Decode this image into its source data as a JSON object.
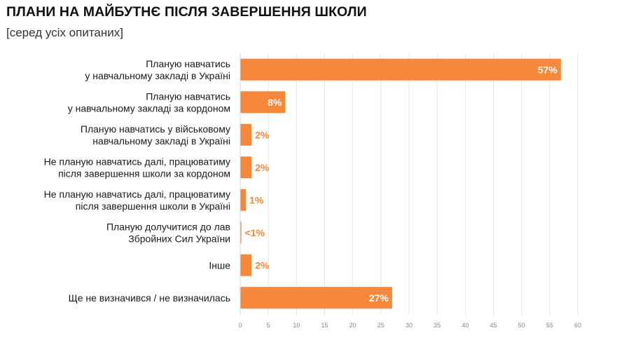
{
  "title": "ПЛАНИ НА МАЙБУТНЄ ПІСЛЯ ЗАВЕРШЕННЯ ШКОЛИ",
  "subtitle": "[серед усіх опитаних]",
  "chart_data": {
    "type": "bar",
    "orientation": "horizontal",
    "bar_color": "#f5883b",
    "grid": true,
    "xlim": [
      0,
      60
    ],
    "xticks": [
      0,
      5,
      10,
      15,
      20,
      25,
      30,
      35,
      40,
      45,
      50,
      55,
      60
    ],
    "categories": [
      [
        "Планую навчатись",
        "у навчальному закладі в Україні"
      ],
      [
        "Планую навчатись",
        "у навчальному закладі за кордоном"
      ],
      [
        "Планую навчатись у військовому",
        "навчальному закладі в Україні"
      ],
      [
        "Не планую навчатись далі, працюватиму",
        "після завершення школи за кордоном"
      ],
      [
        "Не планую навчатись далі, працюватиму",
        "після завершення школи в Україні"
      ],
      [
        "Планую долучитися до лав",
        "Збройних Сил України"
      ],
      [
        "Інше"
      ],
      [
        "Ще не визначився / не визначилась"
      ]
    ],
    "values": [
      57,
      8,
      2,
      2,
      1,
      0.2,
      2,
      27
    ],
    "data_labels": [
      "57%",
      "8%",
      "2%",
      "2%",
      "1%",
      "<1%",
      "2%",
      "27%"
    ]
  }
}
